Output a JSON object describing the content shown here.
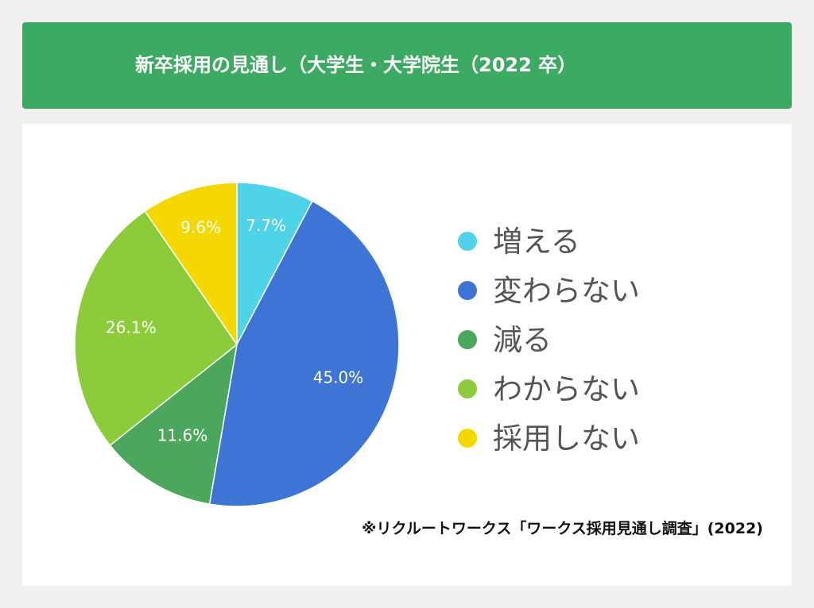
{
  "header": {
    "title": "新卒採用の見通し（大学生・大学院生（2022 卒）"
  },
  "chart_data": {
    "type": "pie",
    "title": "新卒採用の見通し（大学生・大学院生（2022 卒）",
    "slices": [
      {
        "label": "増える",
        "value": 7.7,
        "display": "7.7%",
        "color": "#4fd3e8"
      },
      {
        "label": "変わらない",
        "value": 45.0,
        "display": "45.0%",
        "color": "#3e74d6"
      },
      {
        "label": "減る",
        "value": 11.6,
        "display": "11.6%",
        "color": "#4ca65c"
      },
      {
        "label": "わからない",
        "value": 26.1,
        "display": "26.1%",
        "color": "#8ccc3a"
      },
      {
        "label": "採用しない",
        "value": 9.6,
        "display": "9.6%",
        "color": "#f5d800"
      }
    ],
    "legend_position": "right"
  },
  "source": "※リクルートワークス「ワークス採用見通し調査」(2022)"
}
